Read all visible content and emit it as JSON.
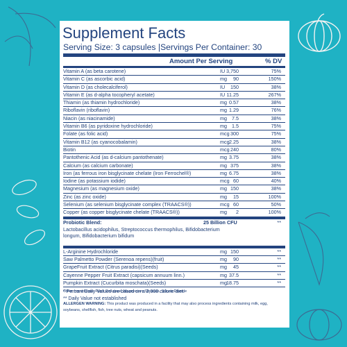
{
  "title": "Supplement Facts",
  "serving": "Serving Size: 3 capsules |Servings Per Container: 30",
  "header": {
    "amount": "Amount Per Serving",
    "dv": "% DV"
  },
  "nutrients": [
    {
      "name": "Vitamin A (as beta carotene)",
      "qty": "3,750",
      "unit": "IU",
      "dv": "75%"
    },
    {
      "name": "Vitamin C (as ascorbic acid)",
      "qty": "90",
      "unit": "mg",
      "dv": "150%"
    },
    {
      "name": "Vitamin D (as cholecalciferol)",
      "qty": "150",
      "unit": "IU",
      "dv": "38%"
    },
    {
      "name": "Vitamin E (as d-alpha tocopheryl acetate)",
      "qty": "11.25",
      "unit": "IU",
      "dv": "267%"
    },
    {
      "name": "Thiamin (as thiamin hydrochloride)",
      "qty": "0.57",
      "unit": "mg",
      "dv": "38%"
    },
    {
      "name": "Riboflavin (riboflavin)",
      "qty": "1.29",
      "unit": "mg",
      "dv": "76%"
    },
    {
      "name": "Niacin (as niacinamide)",
      "qty": "7.5",
      "unit": "mg",
      "dv": "38%"
    },
    {
      "name": "Vitamin B6 (as pyridoxine hydrochloride)",
      "qty": "1.5",
      "unit": "mg",
      "dv": "75%"
    },
    {
      "name": "Folate (as folic acid)",
      "qty": "300",
      "unit": "mcg",
      "dv": "75%"
    },
    {
      "name": "Vitamin B12 (as cyanocobalamin)",
      "qty": "2.25",
      "unit": "mcg",
      "dv": "38%"
    },
    {
      "name": "Biotin",
      "qty": "240",
      "unit": "mcg",
      "dv": "80%"
    },
    {
      "name": "Pantothenic Acid (as d-calcium pantothenate)",
      "qty": "3.75",
      "unit": "mg",
      "dv": "38%"
    },
    {
      "name": "Calcium (as calcium carbonate)",
      "qty": "375",
      "unit": "mg",
      "dv": "38%"
    },
    {
      "name": "Iron (as ferrous iron bisglycinate chelate (Iron Ferrochel®)",
      "qty": "6.75",
      "unit": "mg",
      "dv": "38%"
    },
    {
      "name": "Iodine (as potassium iodide)",
      "qty": "60",
      "unit": "mcg",
      "dv": "40%"
    },
    {
      "name": "Magnesium (as magnesium oxide)",
      "qty": "150",
      "unit": "mg",
      "dv": "38%"
    },
    {
      "name": "Zinc (as zinc oxide)",
      "qty": "15",
      "unit": "mg",
      "dv": "100%"
    },
    {
      "name": "Selenium (as selenium bisglycinate complex (TRAACS®))",
      "qty": "60",
      "unit": "mcg",
      "dv": "50%"
    },
    {
      "name": "Copper (as copper bisglycinate chelate (TRAACS®))",
      "qty": "2",
      "unit": "mg",
      "dv": "100%"
    }
  ],
  "probiotic": {
    "name": "Probiotic Blend:",
    "qty": "25 Billion CFU",
    "dv": "**",
    "strains": "Lactobacillus acidophilus, Streptococcus thermophilus, Bifidobacterium longum, Bifidobacterium bifidum"
  },
  "extras": [
    {
      "name": "L-Arginine Hydrochloride",
      "qty": "150",
      "unit": "mg",
      "dv": "**"
    },
    {
      "name": "Saw Palmetto Powder (Serenoa repens)(fruit)",
      "qty": "90",
      "unit": "mg",
      "dv": "**"
    },
    {
      "name": "GrapeFruit Extract (Citrus paradisi)(Seeds)",
      "qty": "45",
      "unit": "mg",
      "dv": "**"
    },
    {
      "name": "Cayenne Pepper Fruit Extract (capsicum annuum linn.)",
      "qty": "37.5",
      "unit": "mg",
      "dv": "**"
    },
    {
      "name": "Pumpkin Extract (Cucurbita moschata)(Seeds)",
      "qty": "18.75",
      "unit": "mg",
      "dv": "**"
    }
  ],
  "footnotes": [
    "* Percent Daily Values are based on a 2,000 calorie diet.",
    "** Daily Value not established"
  ],
  "other_ingredients": "Other Ingredients: Plant Cellulose, Magnesium Stearate, Silicon Dioxide",
  "allergen_label": "ALLERGEN WARNING:",
  "allergen_text": " This product was produced in a facility that may also process ingredients containing milk, egg, soybeans, shellfish, fish, tree nuts, wheat and peanuts.",
  "colors": {
    "background": "#1fb2c4",
    "ink": "#23447f",
    "deco": "#3c6b93"
  }
}
